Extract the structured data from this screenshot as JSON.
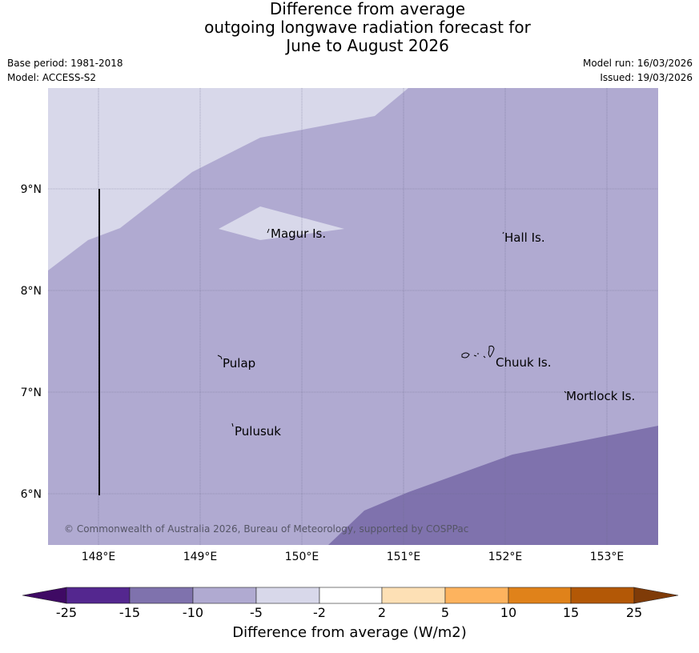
{
  "title": {
    "line1": "Difference from average",
    "line2": "outgoing longwave radiation forecast for",
    "line3": "June to August 2026"
  },
  "meta": {
    "base_period": "Base period: 1981-2018",
    "model": "Model: ACCESS-S2",
    "model_run": "Model run: 16/03/2026",
    "issued": "Issued: 19/03/2026"
  },
  "map": {
    "lon_range": [
      147.5,
      153.5
    ],
    "lat_range": [
      5.5,
      10.0
    ],
    "lat_ticks": [
      "9°N",
      "8°N",
      "7°N",
      "6°N"
    ],
    "lon_ticks": [
      "148°E",
      "149°E",
      "150°E",
      "151°E",
      "152°E",
      "153°E"
    ],
    "places": [
      {
        "name": "Magur Is.",
        "lon": 149.67,
        "lat": 8.55
      },
      {
        "name": "Hall Is.",
        "lon": 152.0,
        "lat": 8.5
      },
      {
        "name": "Pulap",
        "lon": 149.2,
        "lat": 7.3
      },
      {
        "name": "Chuuk Is.",
        "lon": 151.85,
        "lat": 7.3
      },
      {
        "name": "Mortlock Is.",
        "lon": 152.6,
        "lat": 6.95
      },
      {
        "name": "Pulusuk",
        "lon": 149.32,
        "lat": 6.65
      }
    ],
    "copyright": "© Commonwealth of Australia 2026, Bureau of Meteorology, supported by COSPPac"
  },
  "colorbar": {
    "title": "Difference from average (W/m2)",
    "tick_labels": [
      "-25",
      "-15",
      "-10",
      "-5",
      "-2",
      "2",
      "5",
      "10",
      "15",
      "25"
    ],
    "colors": [
      "#3f0a64",
      "#54278f",
      "#7f72ad",
      "#b0aad1",
      "#d8d8ea",
      "#ffffff",
      "#fde0b5",
      "#fdb35e",
      "#e0821a",
      "#b35806",
      "#7f3b08"
    ]
  }
}
